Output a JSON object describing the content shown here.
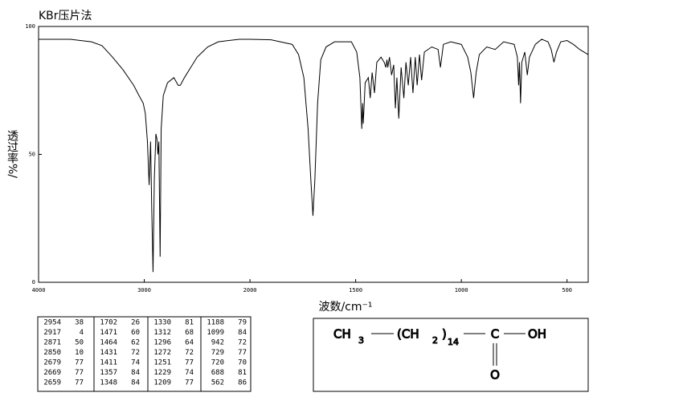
{
  "chart_data": {
    "type": "line",
    "title": "KBr压片法",
    "xlabel": "波数/cm⁻¹",
    "ylabel": "透过率%/",
    "xlim": [
      4000,
      400
    ],
    "ylim": [
      0,
      100
    ],
    "xticks": [
      4000,
      3000,
      2000,
      1500,
      1000,
      500
    ],
    "yticks": [
      0,
      50,
      100
    ],
    "x_scale": {
      "break": 2000,
      "factor": 2
    },
    "color": "#000000",
    "x": [
      4000,
      3700,
      3500,
      3400,
      3300,
      3200,
      3100,
      3050,
      3010,
      2990,
      2970,
      2954,
      2940,
      2930,
      2917,
      2905,
      2890,
      2880,
      2871,
      2862,
      2850,
      2840,
      2820,
      2780,
      2720,
      2679,
      2669,
      2659,
      2620,
      2560,
      2500,
      2400,
      2300,
      2200,
      2100,
      2000,
      1900,
      1800,
      1770,
      1745,
      1725,
      1712,
      1702,
      1693,
      1680,
      1665,
      1640,
      1600,
      1520,
      1495,
      1480,
      1471,
      1467,
      1464,
      1455,
      1440,
      1431,
      1422,
      1411,
      1400,
      1380,
      1365,
      1357,
      1352,
      1348,
      1340,
      1330,
      1320,
      1312,
      1305,
      1296,
      1285,
      1272,
      1262,
      1251,
      1240,
      1229,
      1218,
      1209,
      1198,
      1188,
      1175,
      1140,
      1110,
      1099,
      1085,
      1050,
      1000,
      970,
      955,
      942,
      930,
      915,
      880,
      840,
      800,
      750,
      735,
      729,
      725,
      720,
      714,
      700,
      688,
      678,
      650,
      620,
      590,
      575,
      562,
      550,
      530,
      500,
      470,
      440,
      400
    ],
    "values": [
      95,
      95,
      94,
      92.5,
      88,
      83,
      77,
      73,
      70,
      66,
      55,
      38,
      55,
      30,
      4,
      40,
      58,
      56,
      50,
      55,
      10,
      60,
      73,
      78,
      80,
      77,
      77,
      77,
      80,
      84,
      88,
      92,
      94,
      94.5,
      95,
      95,
      94.8,
      93,
      89,
      80,
      60,
      40,
      26,
      40,
      70,
      87,
      92,
      94,
      94,
      90,
      80,
      60,
      70,
      62,
      78,
      80,
      72,
      82,
      74,
      86,
      88,
      86,
      84,
      87,
      84,
      88,
      81,
      85,
      68,
      80,
      64,
      84,
      72,
      86,
      77,
      88,
      74,
      88,
      77,
      89,
      79,
      90,
      92,
      91,
      84,
      93,
      94,
      93,
      88,
      82,
      72,
      82,
      89,
      92,
      91,
      94,
      93,
      88,
      77,
      86,
      70,
      86,
      90,
      81,
      88,
      93,
      95,
      94,
      91,
      86,
      90,
      94,
      94.5,
      93,
      91,
      89
    ]
  },
  "peak_table": {
    "rows": [
      [
        2954,
        38,
        1702,
        26,
        1330,
        81,
        1188,
        79
      ],
      [
        2917,
        4,
        1471,
        60,
        1312,
        68,
        1099,
        84
      ],
      [
        2871,
        50,
        1464,
        62,
        1296,
        64,
        942,
        72
      ],
      [
        2850,
        10,
        1431,
        72,
        1272,
        72,
        729,
        77
      ],
      [
        2679,
        77,
        1411,
        74,
        1251,
        77,
        720,
        70
      ],
      [
        2669,
        77,
        1357,
        84,
        1229,
        74,
        688,
        81
      ],
      [
        2659,
        77,
        1348,
        84,
        1209,
        77,
        562,
        86
      ]
    ]
  },
  "structure": {
    "parts": [
      "CH",
      "3",
      "(CH",
      "2",
      ")",
      "14",
      "C",
      "OH",
      "O"
    ]
  }
}
